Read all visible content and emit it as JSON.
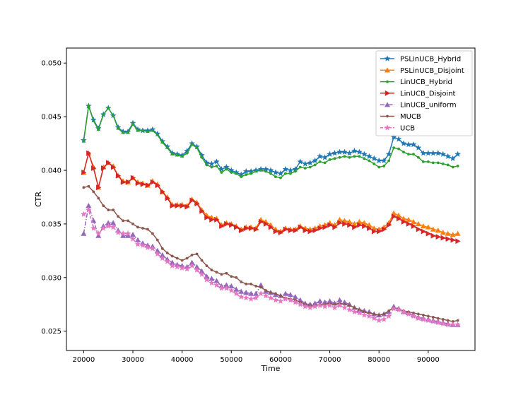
{
  "chart_data": {
    "type": "line",
    "title": "",
    "xlabel": "Time",
    "ylabel": "CTR",
    "xlim": [
      16500,
      99500
    ],
    "ylim": [
      0.0232,
      0.0514
    ],
    "xticks": [
      20000,
      30000,
      40000,
      50000,
      60000,
      70000,
      80000,
      90000
    ],
    "xtick_labels": [
      "20000",
      "30000",
      "40000",
      "50000",
      "60000",
      "70000",
      "80000",
      "90000"
    ],
    "yticks": [
      0.025,
      0.03,
      0.035,
      0.04,
      0.045,
      0.05
    ],
    "ytick_labels": [
      "0.025",
      "0.030",
      "0.035",
      "0.040",
      "0.045",
      "0.050"
    ],
    "legend_position": "top-right",
    "grid": false,
    "x": [
      20000,
      21000,
      22000,
      23000,
      24000,
      25000,
      26000,
      27000,
      28000,
      29000,
      30000,
      31000,
      32000,
      33000,
      34000,
      35000,
      36000,
      37000,
      38000,
      39000,
      40000,
      41000,
      42000,
      43000,
      44000,
      45000,
      46000,
      47000,
      48000,
      49000,
      50000,
      51000,
      52000,
      53000,
      54000,
      55000,
      56000,
      57000,
      58000,
      59000,
      60000,
      61000,
      62000,
      63000,
      64000,
      65000,
      66000,
      67000,
      68000,
      69000,
      70000,
      71000,
      72000,
      73000,
      74000,
      75000,
      76000,
      77000,
      78000,
      79000,
      80000,
      81000,
      82000,
      83000,
      84000,
      85000,
      86000,
      87000,
      88000,
      89000,
      90000,
      91000,
      92000,
      93000,
      94000,
      95000,
      96000
    ],
    "series": [
      {
        "name": "PSLinUCB_Hybrid",
        "color": "#1f77b4",
        "marker": "star",
        "linestyle": "solid",
        "values": [
          0.0428,
          0.046,
          0.0447,
          0.0439,
          0.0452,
          0.0458,
          0.0451,
          0.044,
          0.0436,
          0.0436,
          0.0444,
          0.0438,
          0.0437,
          0.0437,
          0.0438,
          0.0434,
          0.0427,
          0.0422,
          0.0416,
          0.0415,
          0.0414,
          0.0418,
          0.0425,
          0.0422,
          0.0414,
          0.0407,
          0.0406,
          0.0408,
          0.0401,
          0.0403,
          0.04,
          0.0398,
          0.0396,
          0.0399,
          0.0399,
          0.04,
          0.0401,
          0.0401,
          0.04,
          0.0398,
          0.0397,
          0.0401,
          0.04,
          0.0401,
          0.0408,
          0.0406,
          0.0407,
          0.0409,
          0.0413,
          0.0412,
          0.0415,
          0.0416,
          0.0417,
          0.0417,
          0.0416,
          0.0418,
          0.0417,
          0.0415,
          0.0413,
          0.0411,
          0.0409,
          0.0409,
          0.0415,
          0.0431,
          0.0429,
          0.0425,
          0.0424,
          0.0424,
          0.0421,
          0.0416,
          0.0416,
          0.0416,
          0.0416,
          0.0415,
          0.0413,
          0.0411,
          0.0415
        ]
      },
      {
        "name": "PSLinUCB_Disjoint",
        "color": "#ff7f0e",
        "marker": "triangle-up",
        "linestyle": "solid",
        "values": [
          0.0398,
          0.0416,
          0.0403,
          0.0384,
          0.0403,
          0.0407,
          0.0404,
          0.0395,
          0.039,
          0.0389,
          0.0393,
          0.0389,
          0.0388,
          0.0386,
          0.039,
          0.0387,
          0.038,
          0.0375,
          0.0368,
          0.0368,
          0.0368,
          0.0367,
          0.0373,
          0.037,
          0.0363,
          0.0358,
          0.0356,
          0.0355,
          0.0349,
          0.0351,
          0.035,
          0.0348,
          0.0345,
          0.0347,
          0.0347,
          0.0346,
          0.0354,
          0.0352,
          0.0349,
          0.0345,
          0.0343,
          0.0346,
          0.0345,
          0.0345,
          0.0348,
          0.0346,
          0.0345,
          0.0346,
          0.0348,
          0.0349,
          0.0351,
          0.0349,
          0.0354,
          0.0353,
          0.0352,
          0.035,
          0.0352,
          0.0351,
          0.0349,
          0.0346,
          0.0345,
          0.0347,
          0.0351,
          0.036,
          0.0358,
          0.0355,
          0.0354,
          0.0352,
          0.035,
          0.0348,
          0.0347,
          0.0345,
          0.0344,
          0.0342,
          0.0341,
          0.034,
          0.0341
        ]
      },
      {
        "name": "LinUCB_Hybrid",
        "color": "#2ca02c",
        "marker": "dot",
        "linestyle": "solid",
        "values": [
          0.0427,
          0.046,
          0.0446,
          0.0438,
          0.0452,
          0.0458,
          0.0451,
          0.0439,
          0.0435,
          0.0435,
          0.0443,
          0.0437,
          0.0437,
          0.0436,
          0.0437,
          0.0433,
          0.0426,
          0.0421,
          0.0415,
          0.0414,
          0.0413,
          0.0416,
          0.0424,
          0.0421,
          0.0412,
          0.0405,
          0.0403,
          0.0404,
          0.0398,
          0.0401,
          0.0398,
          0.0397,
          0.0394,
          0.0396,
          0.0397,
          0.0399,
          0.04,
          0.0399,
          0.0397,
          0.0394,
          0.0393,
          0.0397,
          0.0397,
          0.0399,
          0.0403,
          0.0402,
          0.0403,
          0.0405,
          0.0408,
          0.0407,
          0.041,
          0.0411,
          0.0412,
          0.0413,
          0.0412,
          0.0413,
          0.0413,
          0.0411,
          0.0409,
          0.0406,
          0.0403,
          0.0404,
          0.0409,
          0.0421,
          0.042,
          0.0417,
          0.0415,
          0.0415,
          0.0412,
          0.0408,
          0.0408,
          0.0407,
          0.0407,
          0.0406,
          0.0405,
          0.0403,
          0.0404
        ]
      },
      {
        "name": "LinUCB_Disjoint",
        "color": "#d62728",
        "marker": "triangle-right",
        "linestyle": "solid",
        "values": [
          0.0398,
          0.0416,
          0.0402,
          0.0384,
          0.0402,
          0.0407,
          0.0403,
          0.0395,
          0.0389,
          0.0389,
          0.0393,
          0.0388,
          0.0387,
          0.0386,
          0.0389,
          0.0386,
          0.038,
          0.0374,
          0.0367,
          0.0367,
          0.0367,
          0.0366,
          0.0372,
          0.0369,
          0.0362,
          0.0356,
          0.0354,
          0.0354,
          0.0348,
          0.035,
          0.0349,
          0.0347,
          0.0344,
          0.0346,
          0.0346,
          0.0345,
          0.0352,
          0.035,
          0.0347,
          0.0343,
          0.0342,
          0.0345,
          0.0344,
          0.0344,
          0.0347,
          0.0344,
          0.0343,
          0.0344,
          0.0346,
          0.0347,
          0.0349,
          0.0347,
          0.0351,
          0.035,
          0.0349,
          0.0347,
          0.0349,
          0.0348,
          0.0346,
          0.0343,
          0.0343,
          0.0345,
          0.0349,
          0.0357,
          0.0355,
          0.0352,
          0.035,
          0.0348,
          0.0345,
          0.0343,
          0.0341,
          0.0339,
          0.0338,
          0.0337,
          0.0336,
          0.0335,
          0.0334
        ]
      },
      {
        "name": "LinUCB_uniform",
        "color": "#9467bd",
        "marker": "triangle-up",
        "linestyle": "dashdot",
        "values": [
          0.0341,
          0.0367,
          0.0353,
          0.0339,
          0.0348,
          0.0351,
          0.0351,
          0.0344,
          0.0339,
          0.0339,
          0.034,
          0.0335,
          0.0332,
          0.033,
          0.0329,
          0.0325,
          0.0321,
          0.0317,
          0.0314,
          0.0312,
          0.0311,
          0.031,
          0.0314,
          0.031,
          0.0306,
          0.0301,
          0.0299,
          0.0297,
          0.0292,
          0.0293,
          0.0292,
          0.0289,
          0.0287,
          0.0286,
          0.0285,
          0.0285,
          0.0293,
          0.0287,
          0.0286,
          0.0284,
          0.0283,
          0.0285,
          0.0284,
          0.0282,
          0.0279,
          0.0276,
          0.0275,
          0.0276,
          0.0278,
          0.0277,
          0.0278,
          0.0276,
          0.0279,
          0.0277,
          0.0275,
          0.0272,
          0.027,
          0.0269,
          0.0268,
          0.0266,
          0.0265,
          0.0266,
          0.0268,
          0.0273,
          0.0271,
          0.0268,
          0.0267,
          0.0265,
          0.0263,
          0.0262,
          0.0261,
          0.026,
          0.0259,
          0.0258,
          0.0257,
          0.0256,
          0.0256
        ]
      },
      {
        "name": "MUCB",
        "color": "#8c564b",
        "marker": "dot",
        "linestyle": "solid",
        "values": [
          0.0384,
          0.0385,
          0.038,
          0.0374,
          0.0367,
          0.0363,
          0.0363,
          0.0357,
          0.0353,
          0.0353,
          0.035,
          0.0347,
          0.0346,
          0.0345,
          0.0341,
          0.0335,
          0.0327,
          0.0323,
          0.032,
          0.0318,
          0.0316,
          0.0318,
          0.0321,
          0.0322,
          0.0316,
          0.0311,
          0.0307,
          0.0305,
          0.0303,
          0.0304,
          0.0301,
          0.03,
          0.0296,
          0.0294,
          0.0294,
          0.0292,
          0.0291,
          0.0288,
          0.0286,
          0.0285,
          0.0283,
          0.0281,
          0.028,
          0.0279,
          0.0277,
          0.0275,
          0.0274,
          0.0274,
          0.0275,
          0.0275,
          0.0276,
          0.0275,
          0.0276,
          0.0275,
          0.0274,
          0.0272,
          0.027,
          0.0268,
          0.0267,
          0.0266,
          0.0265,
          0.0266,
          0.0269,
          0.0272,
          0.027,
          0.0269,
          0.0268,
          0.0267,
          0.0266,
          0.0265,
          0.0264,
          0.0263,
          0.0262,
          0.0261,
          0.026,
          0.0259,
          0.026
        ]
      },
      {
        "name": "UCB",
        "color": "#e377c2",
        "marker": "star",
        "linestyle": "dashed",
        "values": [
          0.0359,
          0.0363,
          0.0346,
          0.0341,
          0.0346,
          0.0348,
          0.0347,
          0.0342,
          0.0341,
          0.0341,
          0.0336,
          0.0331,
          0.033,
          0.0328,
          0.0327,
          0.0322,
          0.0318,
          0.0315,
          0.0311,
          0.031,
          0.0309,
          0.0308,
          0.0311,
          0.0307,
          0.0303,
          0.0298,
          0.0295,
          0.0293,
          0.029,
          0.029,
          0.0288,
          0.0285,
          0.0282,
          0.0281,
          0.028,
          0.0281,
          0.0285,
          0.0283,
          0.0281,
          0.0279,
          0.0278,
          0.028,
          0.0279,
          0.0277,
          0.0275,
          0.0273,
          0.0272,
          0.0273,
          0.0274,
          0.0273,
          0.0274,
          0.0272,
          0.0274,
          0.0272,
          0.027,
          0.0268,
          0.0267,
          0.0265,
          0.0264,
          0.0262,
          0.026,
          0.0261,
          0.0264,
          0.0271,
          0.027,
          0.0268,
          0.0266,
          0.0264,
          0.0262,
          0.0261,
          0.026,
          0.0259,
          0.0258,
          0.0257,
          0.0256,
          0.0256,
          0.0256
        ]
      }
    ]
  }
}
